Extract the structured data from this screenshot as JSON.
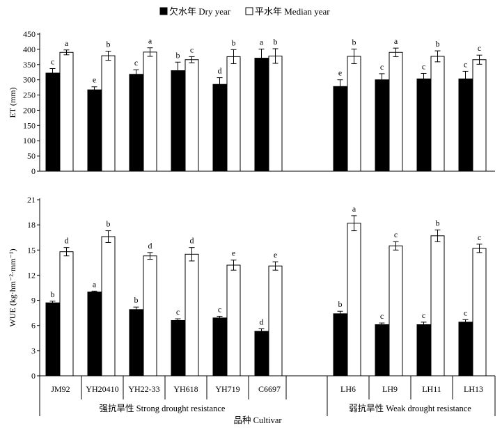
{
  "legend": {
    "dry": "欠水年 Dry year",
    "median": "平水年 Median year"
  },
  "colors": {
    "dry": "#000000",
    "median": "#ffffff",
    "stroke": "#000000"
  },
  "chart_data": [
    {
      "type": "bar",
      "ylabel": "ET (mm)",
      "ylim": [
        0,
        450
      ],
      "yticks": [
        0,
        50,
        100,
        150,
        200,
        250,
        300,
        350,
        400,
        450
      ],
      "categories": [
        "JM92",
        "YH20410",
        "YH22-33",
        "YH618",
        "YH719",
        "C6697",
        "LH6",
        "LH9",
        "LH11",
        "LH13"
      ],
      "series": [
        {
          "name": "欠水年 Dry year",
          "values": [
            322,
            267,
            318,
            330,
            285,
            371,
            278,
            300,
            303,
            303
          ],
          "errors": [
            15,
            10,
            15,
            28,
            22,
            30,
            22,
            20,
            18,
            25
          ],
          "letters": [
            "c",
            "e",
            "c",
            "b",
            "d",
            "a",
            "e",
            "c",
            "c",
            "c"
          ]
        },
        {
          "name": "平水年 Median year",
          "values": [
            390,
            379,
            391,
            366,
            376,
            378,
            377,
            390,
            377,
            366
          ],
          "errors": [
            8,
            15,
            14,
            10,
            23,
            24,
            24,
            14,
            18,
            15
          ],
          "letters": [
            "a",
            "b",
            "a",
            "c",
            "b",
            "b",
            "b",
            "a",
            "b",
            "c"
          ]
        }
      ]
    },
    {
      "type": "bar",
      "ylabel": "WUE (kg·hm⁻²·mm⁻¹)",
      "ylim": [
        0,
        21
      ],
      "yticks": [
        0,
        3,
        6,
        9,
        12,
        15,
        18,
        21
      ],
      "categories": [
        "JM92",
        "YH20410",
        "YH22-33",
        "YH618",
        "YH719",
        "C6697",
        "LH6",
        "LH9",
        "LH11",
        "LH13"
      ],
      "series": [
        {
          "name": "欠水年 Dry year",
          "values": [
            8.7,
            10.0,
            7.9,
            6.6,
            6.9,
            5.3,
            7.4,
            6.1,
            6.1,
            6.4
          ],
          "errors": [
            0.2,
            0.1,
            0.3,
            0.2,
            0.2,
            0.3,
            0.3,
            0.2,
            0.3,
            0.3
          ],
          "letters": [
            "b",
            "a",
            "b",
            "c",
            "c",
            "d",
            "b",
            "c",
            "c",
            "c"
          ]
        },
        {
          "name": "平水年 Median year",
          "values": [
            14.8,
            16.6,
            14.3,
            14.5,
            13.2,
            13.1,
            18.2,
            15.5,
            16.7,
            15.2
          ],
          "errors": [
            0.5,
            0.7,
            0.4,
            0.8,
            0.6,
            0.5,
            0.9,
            0.5,
            0.7,
            0.5
          ],
          "letters": [
            "d",
            "b",
            "d",
            "d",
            "e",
            "e",
            "a",
            "c",
            "b",
            "c"
          ]
        }
      ]
    }
  ],
  "groups": [
    "强抗旱性 Strong drought resistance",
    "弱抗旱性 Weak drought resistance"
  ],
  "xlabel": "品种 Cultivar"
}
